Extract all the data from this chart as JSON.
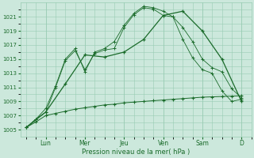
{
  "xlabel": "Pression niveau de la mer( hPa )",
  "bg_color": "#cce8dc",
  "grid_color": "#99ccb3",
  "line_color": "#1a6b2a",
  "ylim": [
    1004,
    1023
  ],
  "yticks": [
    1005,
    1007,
    1009,
    1011,
    1013,
    1015,
    1017,
    1019,
    1021
  ],
  "day_labels": [
    "Lun",
    "Mer",
    "Jeu",
    "Ven",
    "Sam",
    "D"
  ],
  "day_positions": [
    1,
    3,
    5,
    7,
    9,
    11
  ],
  "n_points": 13,
  "line1_x": [
    0,
    0.5,
    1,
    1.5,
    2,
    2.5,
    3,
    3.5,
    4,
    4.5,
    5,
    5.5,
    6,
    6.5,
    7,
    7.5,
    8,
    8.5,
    9,
    9.5,
    10,
    10.5,
    11
  ],
  "line1_y": [
    1005.3,
    1006.1,
    1007.0,
    1007.3,
    1007.6,
    1007.9,
    1008.1,
    1008.3,
    1008.5,
    1008.6,
    1008.8,
    1008.9,
    1009.0,
    1009.1,
    1009.2,
    1009.3,
    1009.4,
    1009.5,
    1009.6,
    1009.65,
    1009.7,
    1009.75,
    1009.8
  ],
  "line2_x": [
    0,
    1,
    2,
    3,
    4,
    5,
    6,
    7,
    8,
    9,
    10,
    11
  ],
  "line2_y": [
    1005.3,
    1007.5,
    1011.5,
    1015.6,
    1015.3,
    1016.0,
    1017.8,
    1021.2,
    1021.8,
    1019.0,
    1015.0,
    1009.0
  ],
  "line3_x": [
    0,
    0.5,
    1,
    1.5,
    2,
    2.5,
    3,
    3.5,
    4,
    4.5,
    5,
    5.5,
    6,
    6.5,
    7,
    7.5,
    8,
    8.5,
    9,
    9.5,
    10,
    10.5,
    11
  ],
  "line3_y": [
    1005.3,
    1006.5,
    1007.5,
    1011.0,
    1014.8,
    1016.2,
    1013.5,
    1015.8,
    1016.3,
    1016.5,
    1019.5,
    1021.3,
    1022.3,
    1022.1,
    1021.2,
    1021.0,
    1019.5,
    1017.5,
    1015.0,
    1013.8,
    1013.2,
    1010.8,
    1009.5
  ],
  "line4_x": [
    0,
    0.5,
    1,
    1.5,
    2,
    2.5,
    3,
    3.5,
    4,
    4.5,
    5,
    5.5,
    6,
    6.5,
    7,
    7.5,
    8,
    8.5,
    9,
    9.5,
    10,
    10.5,
    11
  ],
  "line4_y": [
    1005.3,
    1006.5,
    1008.0,
    1011.2,
    1015.0,
    1016.5,
    1013.2,
    1016.0,
    1016.5,
    1017.5,
    1019.8,
    1021.5,
    1022.5,
    1022.3,
    1021.8,
    1021.0,
    1017.8,
    1015.2,
    1013.5,
    1013.0,
    1010.5,
    1009.0,
    1009.3
  ]
}
